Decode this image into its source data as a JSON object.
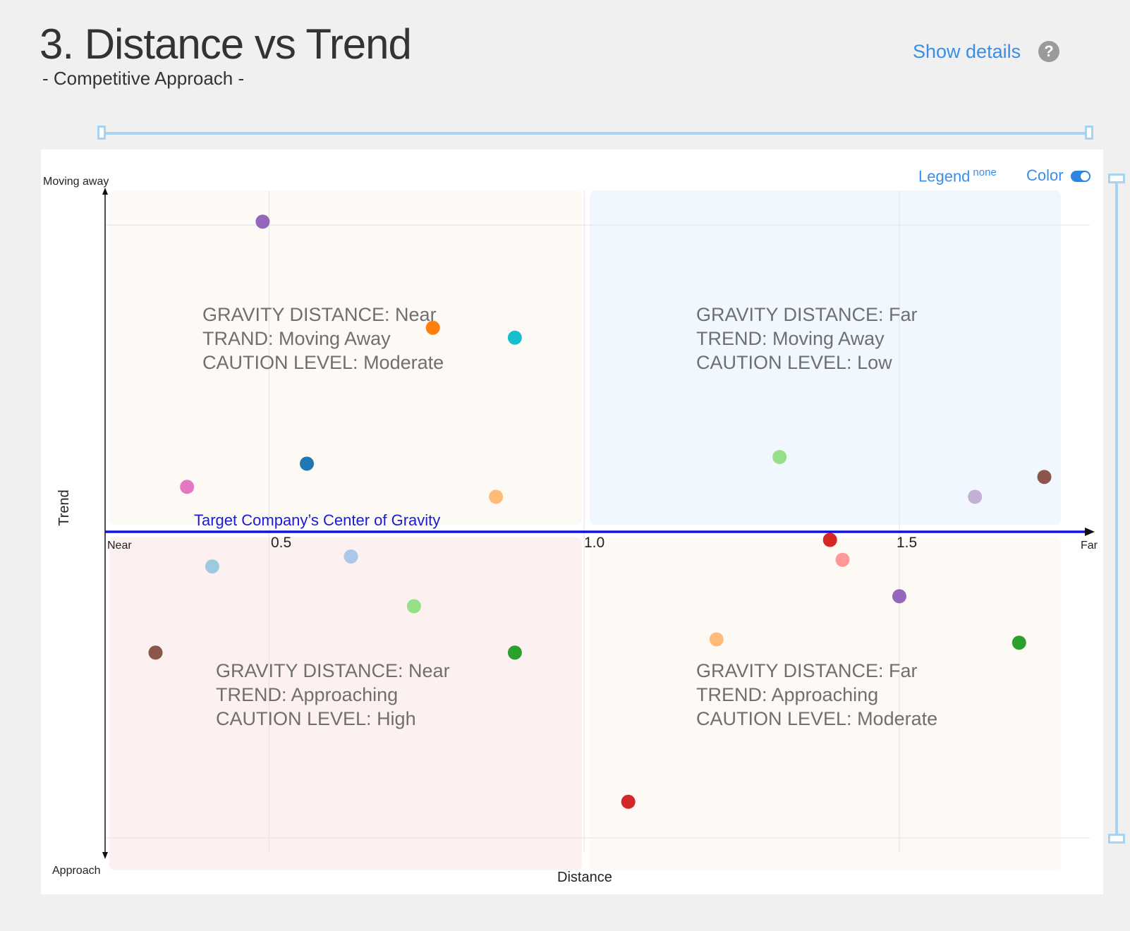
{
  "header": {
    "title": "3. Distance vs Trend",
    "subtitle": "- Competitive Approach -",
    "show_details": "Show details",
    "help": "?"
  },
  "controls": {
    "legend_label": "Legend",
    "legend_value": "none",
    "color_label": "Color",
    "color_enabled": true
  },
  "colors": {
    "gravity_line": "#1010e0",
    "quad_near_away": "#fdf9f5",
    "quad_far_away": "#f0f7fe",
    "quad_near_approach": "#fdf0f0",
    "quad_far_approach": "#fdf9f5"
  },
  "chart_data": {
    "type": "scatter",
    "xlabel": "Distance",
    "ylabel": "Trend",
    "y_top_label": "Moving away",
    "y_bottom_label": "Approach",
    "x_left_label": "Near",
    "x_right_label": "Far",
    "x_ticks": [
      "0.5",
      "1.0",
      "1.5"
    ],
    "xlim": [
      0.24,
      1.81
    ],
    "ylim": [
      -1.0,
      1.0
    ],
    "gravity_line_label": "Target Company’s Center of Gravity",
    "quadrants": [
      {
        "id": "near-away",
        "lines": [
          "GRAVITY DISTANCE: Near",
          "TRAND: Moving Away",
          "CAUTION LEVEL: Moderate"
        ]
      },
      {
        "id": "far-away",
        "lines": [
          "GRAVITY DISTANCE: Far",
          "TREND: Moving Away",
          "CAUTION LEVEL: Low"
        ]
      },
      {
        "id": "near-approach",
        "lines": [
          "GRAVITY DISTANCE: Near",
          "TREND: Approaching",
          "CAUTION LEVEL: High"
        ]
      },
      {
        "id": "far-approach",
        "lines": [
          "GRAVITY DISTANCE: Far",
          "TREND: Approaching",
          "CAUTION LEVEL: Moderate"
        ]
      }
    ],
    "points": [
      {
        "x": 0.49,
        "y": 0.91,
        "color": "#9467bd"
      },
      {
        "x": 0.76,
        "y": 0.59,
        "color": "#ff7f0e"
      },
      {
        "x": 0.89,
        "y": 0.56,
        "color": "#17becf"
      },
      {
        "x": 0.56,
        "y": 0.18,
        "color": "#1f77b4"
      },
      {
        "x": 0.37,
        "y": 0.11,
        "color": "#e377c2"
      },
      {
        "x": 0.86,
        "y": 0.08,
        "color": "#ffbb78"
      },
      {
        "x": 1.31,
        "y": 0.2,
        "color": "#98df8a"
      },
      {
        "x": 1.62,
        "y": 0.08,
        "color": "#c5b0d5"
      },
      {
        "x": 1.73,
        "y": 0.14,
        "color": "#8c564b"
      },
      {
        "x": 1.39,
        "y": -0.05,
        "color": "#d62728"
      },
      {
        "x": 1.41,
        "y": -0.11,
        "color": "#ff9896"
      },
      {
        "x": 1.5,
        "y": -0.22,
        "color": "#9467bd"
      },
      {
        "x": 1.21,
        "y": -0.35,
        "color": "#ffbb78"
      },
      {
        "x": 1.69,
        "y": -0.36,
        "color": "#2ca02c"
      },
      {
        "x": 1.07,
        "y": -0.84,
        "color": "#d62728"
      },
      {
        "x": 0.41,
        "y": -0.13,
        "color": "#9ecae1"
      },
      {
        "x": 0.63,
        "y": -0.1,
        "color": "#aec7e8"
      },
      {
        "x": 0.73,
        "y": -0.25,
        "color": "#98df8a"
      },
      {
        "x": 0.32,
        "y": -0.39,
        "color": "#8c564b"
      },
      {
        "x": 0.89,
        "y": -0.39,
        "color": "#2ca02c"
      }
    ]
  }
}
